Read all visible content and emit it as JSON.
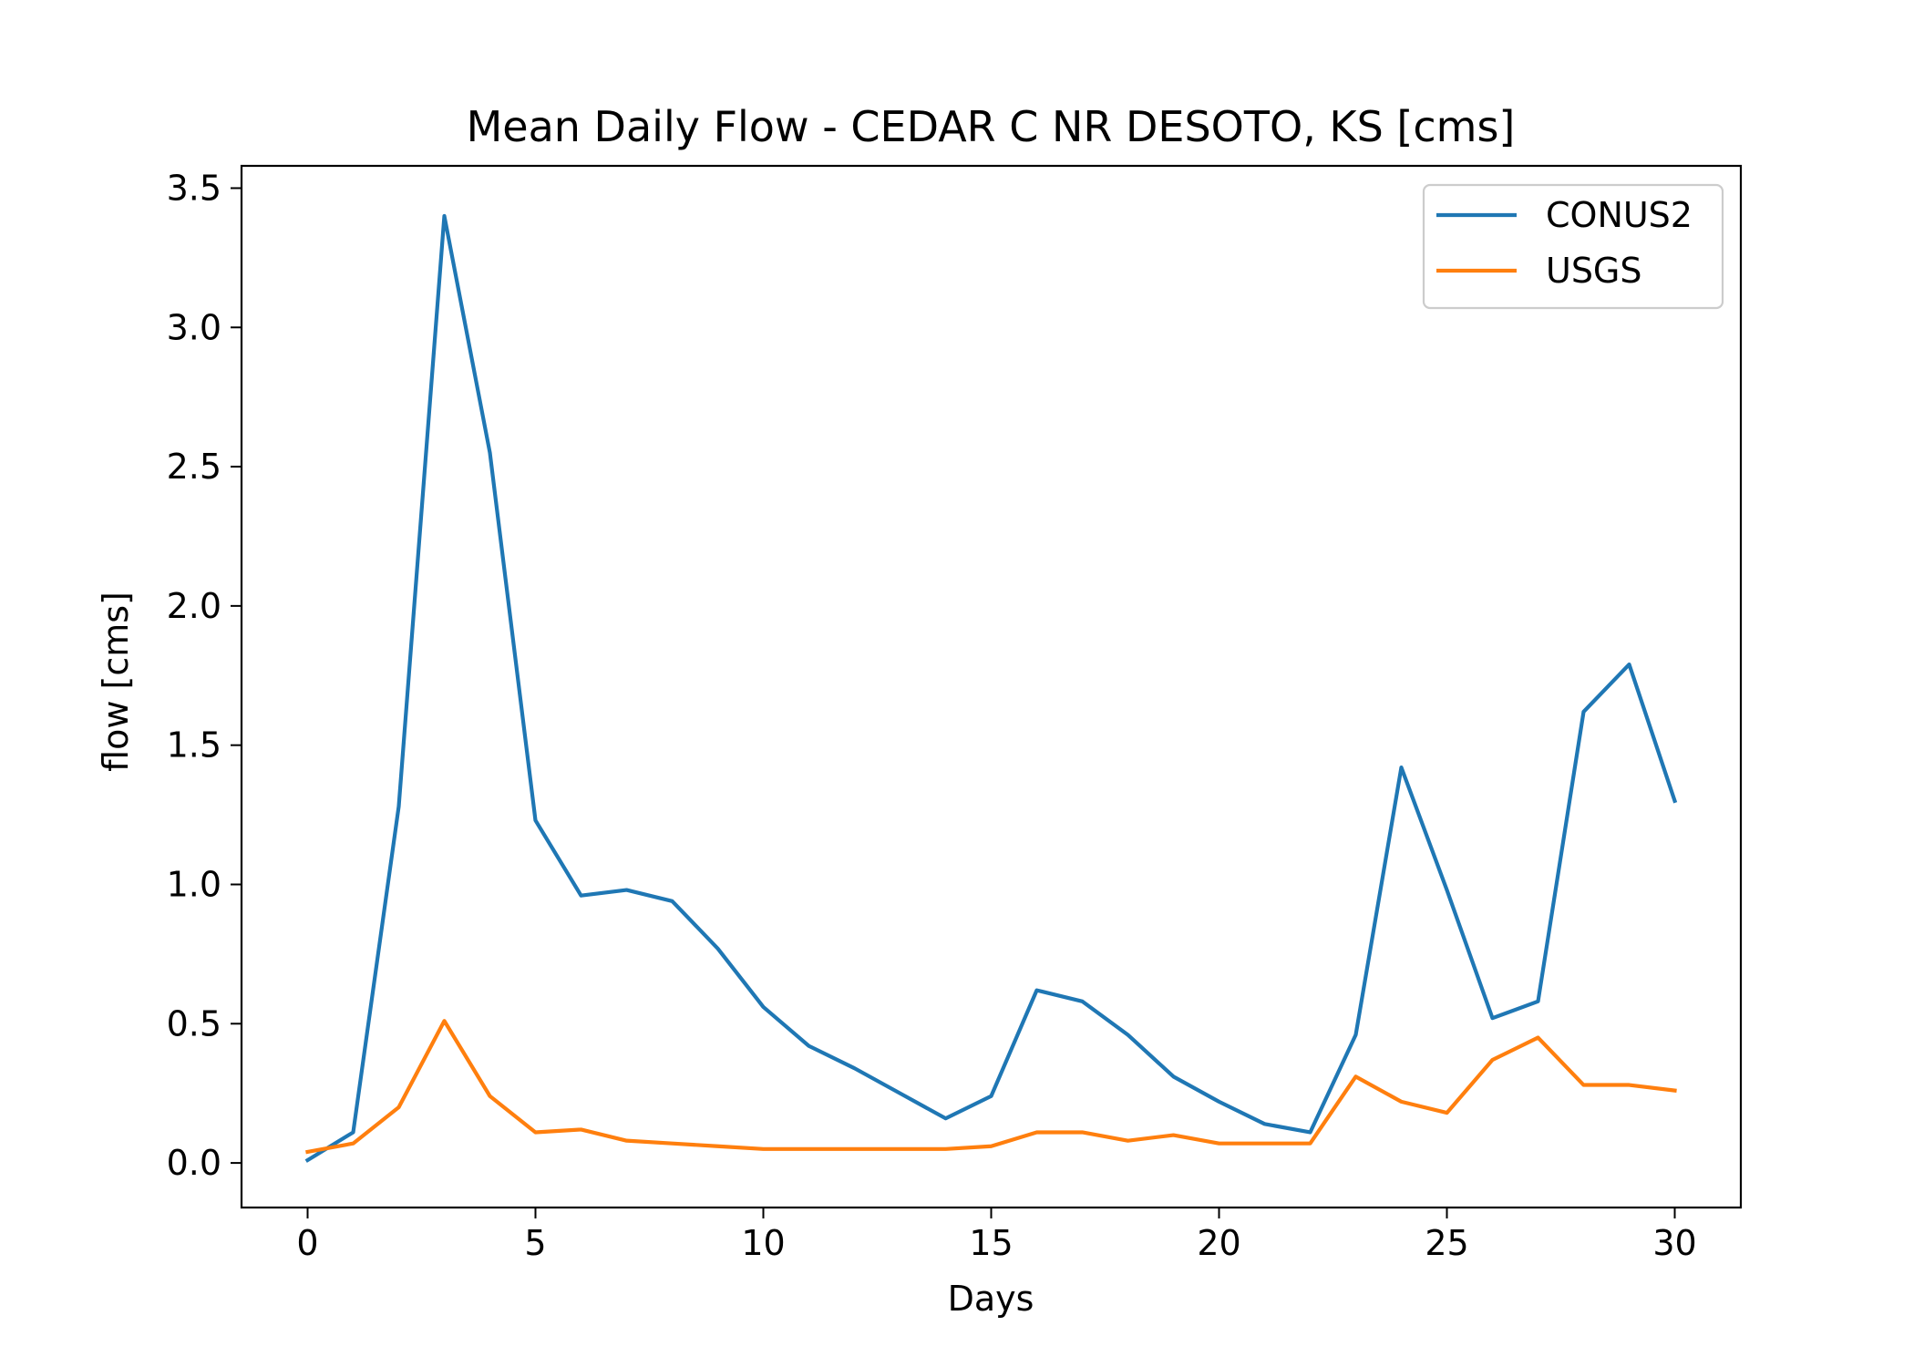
{
  "chart_data": {
    "type": "line",
    "title": "Mean Daily Flow - CEDAR C NR DESOTO, KS [cms]",
    "xlabel": "Days",
    "ylabel": "flow [cms]",
    "xlim": [
      -1.45,
      31.45
    ],
    "ylim": [
      -0.16,
      3.58
    ],
    "xticks": [
      0,
      5,
      10,
      15,
      20,
      25,
      30
    ],
    "xtick_labels": [
      "0",
      "5",
      "10",
      "15",
      "20",
      "25",
      "30"
    ],
    "yticks": [
      0.0,
      0.5,
      1.0,
      1.5,
      2.0,
      2.5,
      3.0,
      3.5
    ],
    "ytick_labels": [
      "0.0",
      "0.5",
      "1.0",
      "1.5",
      "2.0",
      "2.5",
      "3.0",
      "3.5"
    ],
    "grid": false,
    "legend_position": "top-right",
    "x": [
      0,
      1,
      2,
      3,
      4,
      5,
      6,
      7,
      8,
      9,
      10,
      11,
      12,
      13,
      14,
      15,
      16,
      17,
      18,
      19,
      20,
      21,
      22,
      23,
      24,
      25,
      26,
      27,
      28,
      29,
      30
    ],
    "series": [
      {
        "name": "CONUS2",
        "color": "#1f77b4",
        "values": [
          0.01,
          0.11,
          1.28,
          3.4,
          2.55,
          1.23,
          0.96,
          0.98,
          0.94,
          0.77,
          0.56,
          0.42,
          0.34,
          0.25,
          0.16,
          0.24,
          0.62,
          0.58,
          0.46,
          0.31,
          0.22,
          0.14,
          0.11,
          0.46,
          1.42,
          0.98,
          0.52,
          0.58,
          1.62,
          1.79,
          1.3
        ]
      },
      {
        "name": "USGS",
        "color": "#ff7f0e",
        "values": [
          0.04,
          0.07,
          0.2,
          0.51,
          0.24,
          0.11,
          0.12,
          0.08,
          0.07,
          0.06,
          0.05,
          0.05,
          0.05,
          0.05,
          0.05,
          0.06,
          0.11,
          0.11,
          0.08,
          0.1,
          0.07,
          0.07,
          0.07,
          0.31,
          0.22,
          0.18,
          0.37,
          0.45,
          0.28,
          0.28,
          0.26
        ]
      }
    ]
  }
}
